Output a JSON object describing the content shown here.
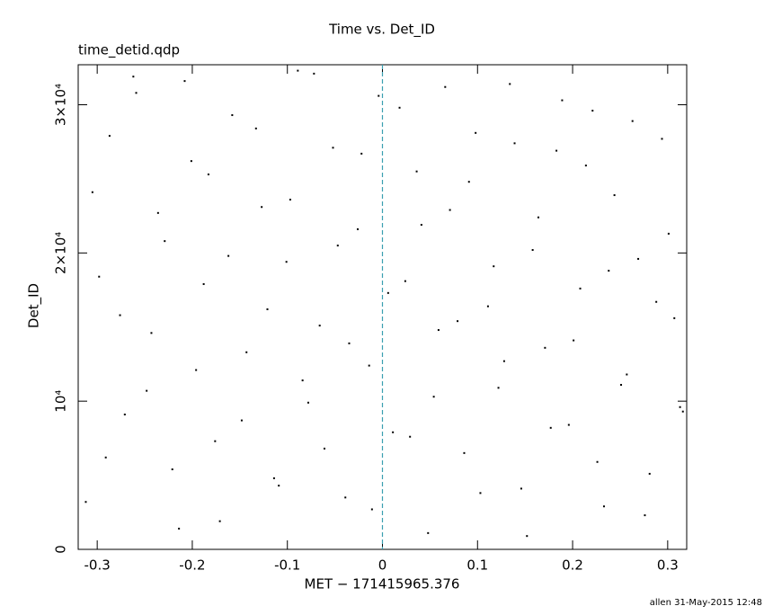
{
  "chart_data": {
    "type": "scatter",
    "title": "Time vs. Det_ID",
    "subtitle": "time_detid.qdp",
    "x_label": "MET − 171415965.376",
    "y_label": "Det_ID",
    "footer": "allen 31-May-2015 12:48",
    "xlim": [
      -0.32,
      0.32
    ],
    "ylim": [
      0,
      32700
    ],
    "xticks": [
      -0.3,
      -0.2,
      -0.1,
      0,
      0.1,
      0.2,
      0.3
    ],
    "yticks": [
      0,
      {
        "value": 10000,
        "label": "10⁴"
      },
      {
        "value": 20000,
        "label": "2×10⁴"
      },
      {
        "value": 30000,
        "label": "3×10⁴"
      }
    ],
    "vline": {
      "x": 0,
      "color": "#3a9fb0"
    },
    "color": "#000000",
    "x": [
      -0.312,
      -0.298,
      -0.287,
      -0.271,
      -0.259,
      -0.243,
      -0.236,
      -0.221,
      -0.208,
      -0.196,
      -0.183,
      -0.171,
      -0.162,
      -0.148,
      -0.133,
      -0.121,
      -0.109,
      -0.097,
      -0.084,
      -0.072,
      -0.061,
      -0.047,
      -0.035,
      -0.022,
      -0.011,
      0.006,
      0.018,
      0.029,
      0.041,
      0.054,
      0.066,
      0.079,
      0.091,
      0.103,
      0.117,
      0.128,
      0.139,
      0.152,
      0.164,
      0.177,
      0.189,
      0.201,
      0.214,
      0.226,
      0.238,
      0.251,
      0.263,
      0.276,
      0.288,
      0.301,
      0.313,
      -0.305,
      -0.291,
      -0.276,
      -0.262,
      -0.248,
      -0.229,
      -0.214,
      -0.201,
      -0.188,
      -0.176,
      -0.158,
      -0.143,
      -0.127,
      -0.114,
      -0.101,
      -0.089,
      -0.078,
      -0.066,
      -0.052,
      -0.039,
      -0.026,
      -0.014,
      -0.004,
      0.011,
      0.024,
      0.036,
      0.048,
      0.059,
      0.071,
      0.086,
      0.098,
      0.111,
      0.122,
      0.134,
      0.146,
      0.158,
      0.171,
      0.183,
      0.196,
      0.208,
      0.221,
      0.233,
      0.244,
      0.257,
      0.269,
      0.281,
      0.294,
      0.307,
      0.316
    ],
    "values": [
      3200,
      18400,
      27900,
      9100,
      30800,
      14600,
      22700,
      5400,
      31600,
      12100,
      25300,
      1900,
      19800,
      8700,
      28400,
      16200,
      4300,
      23600,
      11400,
      32100,
      6800,
      20500,
      13900,
      26700,
      2700,
      17300,
      29800,
      7600,
      21900,
      10300,
      31200,
      15400,
      24800,
      3800,
      19100,
      12700,
      27400,
      900,
      22400,
      8200,
      30300,
      14100,
      25900,
      5900,
      18800,
      11100,
      28900,
      2300,
      16700,
      21300,
      9600,
      24100,
      6200,
      15800,
      31900,
      10700,
      20800,
      1400,
      26200,
      17900,
      7300,
      29300,
      13300,
      23100,
      4800,
      19400,
      32300,
      9900,
      15100,
      27100,
      3500,
      21600,
      12400,
      30600,
      7900,
      18100,
      25500,
      1100,
      14800,
      22900,
      6500,
      28100,
      16400,
      10900,
      31400,
      4100,
      20200,
      13600,
      26900,
      8400,
      17600,
      29600,
      2900,
      23900,
      11800,
      19600,
      5100,
      27700,
      15600,
      9300
    ]
  }
}
